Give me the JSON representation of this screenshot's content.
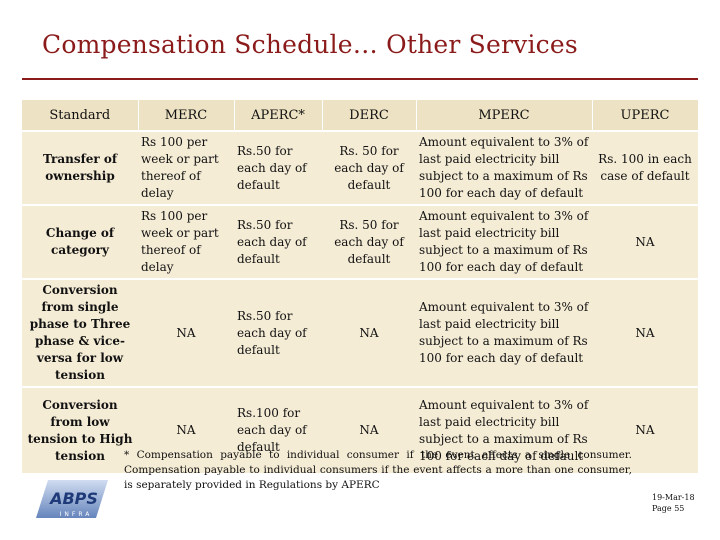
{
  "title": "Compensation Schedule… Other Services",
  "table": {
    "headers": [
      "Standard",
      "MERC",
      "APERC*",
      "DERC",
      "MPERC",
      "UPERC"
    ],
    "rows": [
      {
        "standard": "Transfer of ownership",
        "merc": "Rs 100 per week or part thereof of delay",
        "aperc": "Rs.50 for each day of default",
        "derc": "Rs. 50 for each day of default",
        "mperc": "Amount equivalent to 3% of last paid electricity bill subject to a maximum of Rs 100 for each day of default",
        "uperc": "Rs. 100 in each case of default"
      },
      {
        "standard": "Change of category",
        "merc": "Rs 100 per week or part thereof of delay",
        "aperc": "Rs.50 for each day of default",
        "derc": "Rs. 50 for each day of default",
        "mperc": "Amount equivalent to 3% of last paid electricity bill subject to a maximum of Rs 100 for each day of default",
        "uperc": "NA"
      },
      {
        "standard": "Conversion from single phase to Three phase & vice-versa for low tension",
        "merc": "NA",
        "aperc": "Rs.50 for each day of default",
        "derc": "NA",
        "mperc": "Amount equivalent to 3% of last paid electricity bill subject to a maximum of Rs 100 for each day of default",
        "uperc": "NA"
      },
      {
        "standard": "Conversion from low tension to High tension",
        "merc": "NA",
        "aperc": "Rs.100 for each day of default",
        "derc": "NA",
        "mperc": "Amount equivalent to 3% of last paid electricity bill subject to a maximum of Rs 100 for each day of default",
        "uperc": "NA"
      }
    ]
  },
  "footnote": "* Compensation payable to individual consumer if the event affects a single consumer. Compensation payable to individual consumers if the event affects a more than one consumer, is separately provided in Regulations by APERC",
  "logo": {
    "text": "ABPS",
    "sub": "INFRA",
    "colors": {
      "primary": "#4a6fb0",
      "accent": "#c8d6ee"
    }
  },
  "date": "19-Mar-18",
  "page": "Page 55",
  "colors": {
    "title": "#8b1a1a",
    "header_bg": "#ede2c3",
    "cell_bg": "#f5ecd6"
  }
}
